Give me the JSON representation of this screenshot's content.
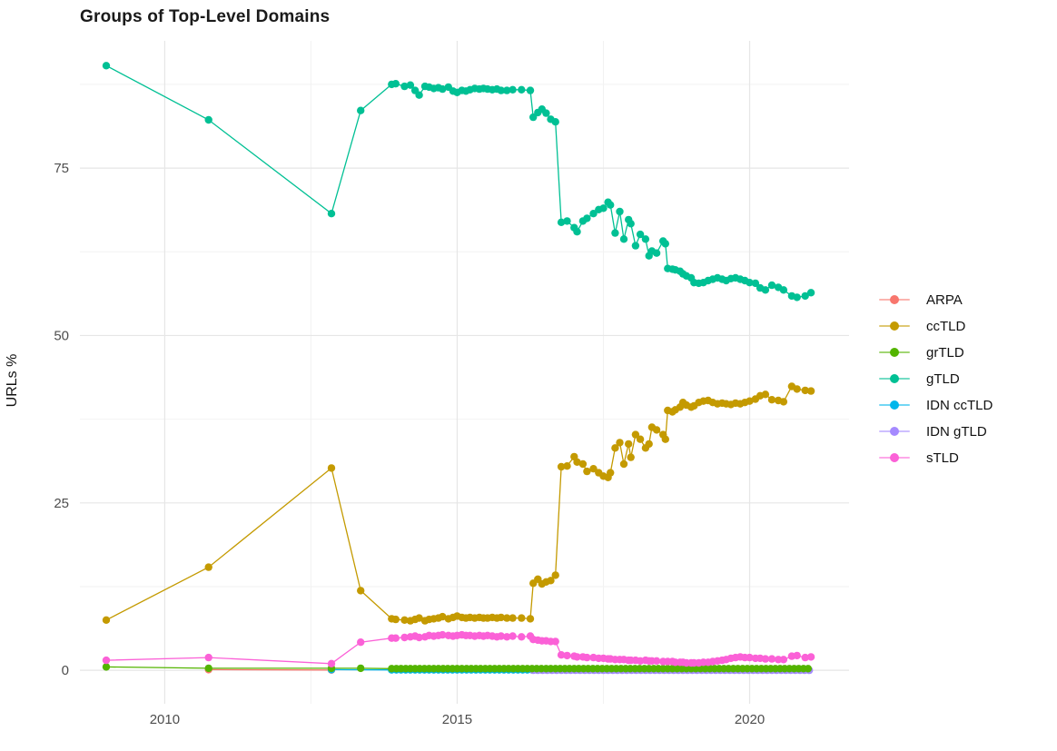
{
  "chart_data": {
    "type": "line",
    "title": "Groups of Top-Level Domains",
    "xlabel": "",
    "ylabel": "URLs %",
    "xlim": [
      2008.55,
      2021.7
    ],
    "ylim": [
      -5,
      94
    ],
    "x_ticks": [
      2010,
      2015,
      2020
    ],
    "x_tick_labels": [
      "2010",
      "2015",
      "2020"
    ],
    "y_ticks": [
      0,
      25,
      50,
      75
    ],
    "y_tick_labels": [
      "0",
      "25",
      "50",
      "75"
    ],
    "x_minor_gridlines": [
      2012.5,
      2017.5
    ],
    "y_minor_gridlines": [
      12.5,
      37.5,
      62.5,
      87.5
    ],
    "grid": true,
    "legend_position": "right",
    "axis_text_color": "#4d4d4d",
    "major_grid_color": "#e6e6e6",
    "minor_grid_color": "#f2f2f2",
    "draw_order": [
      "ARPA",
      "IDN ccTLD",
      "IDN gTLD",
      "ccTLD",
      "gTLD",
      "grTLD",
      "sTLD"
    ],
    "series": [
      {
        "name": "ARPA",
        "color": "#F8766D",
        "points": [
          [
            2010.75,
            0.1
          ],
          [
            2012.85,
            0.05
          ]
        ]
      },
      {
        "name": "ccTLD",
        "color": "#C49A00",
        "points": [
          [
            2009.0,
            7.5
          ],
          [
            2010.75,
            15.4
          ],
          [
            2012.85,
            30.2
          ],
          [
            2013.35,
            11.9
          ],
          [
            2013.88,
            7.7
          ],
          [
            2013.95,
            7.6
          ],
          [
            2014.1,
            7.5
          ],
          [
            2014.2,
            7.4
          ],
          [
            2014.28,
            7.6
          ],
          [
            2014.35,
            7.8
          ],
          [
            2014.45,
            7.4
          ],
          [
            2014.52,
            7.6
          ],
          [
            2014.6,
            7.7
          ],
          [
            2014.68,
            7.8
          ],
          [
            2014.75,
            8.0
          ],
          [
            2014.85,
            7.7
          ],
          [
            2014.93,
            7.9
          ],
          [
            2015.0,
            8.1
          ],
          [
            2015.08,
            7.9
          ],
          [
            2015.15,
            7.8
          ],
          [
            2015.22,
            7.9
          ],
          [
            2015.3,
            7.8
          ],
          [
            2015.38,
            7.9
          ],
          [
            2015.45,
            7.8
          ],
          [
            2015.52,
            7.8
          ],
          [
            2015.6,
            7.9
          ],
          [
            2015.68,
            7.8
          ],
          [
            2015.75,
            7.9
          ],
          [
            2015.85,
            7.8
          ],
          [
            2015.95,
            7.8
          ],
          [
            2016.1,
            7.8
          ],
          [
            2016.25,
            7.7
          ],
          [
            2016.3,
            13.0
          ],
          [
            2016.38,
            13.6
          ],
          [
            2016.45,
            12.9
          ],
          [
            2016.52,
            13.2
          ],
          [
            2016.6,
            13.4
          ],
          [
            2016.68,
            14.2
          ],
          [
            2016.78,
            30.4
          ],
          [
            2016.88,
            30.5
          ],
          [
            2017.0,
            31.9
          ],
          [
            2017.05,
            31.1
          ],
          [
            2017.15,
            30.8
          ],
          [
            2017.22,
            29.7
          ],
          [
            2017.33,
            30.1
          ],
          [
            2017.42,
            29.5
          ],
          [
            2017.5,
            29.0
          ],
          [
            2017.58,
            28.8
          ],
          [
            2017.62,
            29.5
          ],
          [
            2017.7,
            33.2
          ],
          [
            2017.78,
            34.0
          ],
          [
            2017.85,
            30.8
          ],
          [
            2017.93,
            33.8
          ],
          [
            2017.97,
            31.8
          ],
          [
            2018.05,
            35.2
          ],
          [
            2018.13,
            34.5
          ],
          [
            2018.22,
            33.2
          ],
          [
            2018.28,
            33.8
          ],
          [
            2018.33,
            36.3
          ],
          [
            2018.41,
            35.9
          ],
          [
            2018.52,
            35.2
          ],
          [
            2018.56,
            34.5
          ],
          [
            2018.6,
            38.8
          ],
          [
            2018.68,
            38.6
          ],
          [
            2018.73,
            38.9
          ],
          [
            2018.81,
            39.3
          ],
          [
            2018.86,
            40.0
          ],
          [
            2018.92,
            39.6
          ],
          [
            2019.0,
            39.3
          ],
          [
            2019.05,
            39.5
          ],
          [
            2019.13,
            40.0
          ],
          [
            2019.21,
            40.2
          ],
          [
            2019.29,
            40.3
          ],
          [
            2019.37,
            40.0
          ],
          [
            2019.45,
            39.8
          ],
          [
            2019.53,
            39.9
          ],
          [
            2019.6,
            39.8
          ],
          [
            2019.68,
            39.7
          ],
          [
            2019.76,
            39.9
          ],
          [
            2019.84,
            39.8
          ],
          [
            2019.92,
            40.0
          ],
          [
            2020.0,
            40.2
          ],
          [
            2020.1,
            40.5
          ],
          [
            2020.18,
            41.0
          ],
          [
            2020.27,
            41.2
          ],
          [
            2020.38,
            40.4
          ],
          [
            2020.49,
            40.3
          ],
          [
            2020.58,
            40.1
          ],
          [
            2020.72,
            42.4
          ],
          [
            2020.81,
            42.0
          ],
          [
            2020.95,
            41.8
          ],
          [
            2021.05,
            41.7
          ]
        ]
      },
      {
        "name": "grTLD",
        "color": "#53B400",
        "points": [
          [
            2009.0,
            0.5
          ],
          [
            2010.75,
            0.3
          ],
          [
            2012.85,
            0.3
          ],
          [
            2013.35,
            0.3
          ],
          {
            "from": 2013.88,
            "to": 2021.05,
            "step": 0.08,
            "value": 0.25
          }
        ]
      },
      {
        "name": "gTLD",
        "color": "#00C094",
        "points": [
          [
            2009.0,
            90.3
          ],
          [
            2010.75,
            82.2
          ],
          [
            2012.85,
            68.2
          ],
          [
            2013.35,
            83.6
          ],
          [
            2013.88,
            87.5
          ],
          [
            2013.95,
            87.6
          ],
          [
            2014.1,
            87.2
          ],
          [
            2014.2,
            87.4
          ],
          [
            2014.28,
            86.6
          ],
          [
            2014.35,
            85.9
          ],
          [
            2014.45,
            87.2
          ],
          [
            2014.52,
            87.1
          ],
          [
            2014.6,
            86.9
          ],
          [
            2014.68,
            87.0
          ],
          [
            2014.75,
            86.8
          ],
          [
            2014.85,
            87.1
          ],
          [
            2014.93,
            86.5
          ],
          [
            2015.0,
            86.3
          ],
          [
            2015.08,
            86.6
          ],
          [
            2015.15,
            86.5
          ],
          [
            2015.22,
            86.7
          ],
          [
            2015.3,
            86.9
          ],
          [
            2015.38,
            86.8
          ],
          [
            2015.45,
            86.9
          ],
          [
            2015.52,
            86.8
          ],
          [
            2015.6,
            86.7
          ],
          [
            2015.68,
            86.8
          ],
          [
            2015.75,
            86.6
          ],
          [
            2015.85,
            86.6
          ],
          [
            2015.95,
            86.7
          ],
          [
            2016.1,
            86.7
          ],
          [
            2016.25,
            86.6
          ],
          [
            2016.3,
            82.6
          ],
          [
            2016.38,
            83.3
          ],
          [
            2016.45,
            83.8
          ],
          [
            2016.52,
            83.2
          ],
          [
            2016.6,
            82.3
          ],
          [
            2016.68,
            81.9
          ],
          [
            2016.78,
            66.9
          ],
          [
            2016.88,
            67.1
          ],
          [
            2017.0,
            66.1
          ],
          [
            2017.05,
            65.5
          ],
          [
            2017.15,
            67.1
          ],
          [
            2017.22,
            67.5
          ],
          [
            2017.33,
            68.2
          ],
          [
            2017.42,
            68.8
          ],
          [
            2017.5,
            69.0
          ],
          [
            2017.58,
            69.9
          ],
          [
            2017.62,
            69.5
          ],
          [
            2017.7,
            65.3
          ],
          [
            2017.78,
            68.5
          ],
          [
            2017.85,
            64.4
          ],
          [
            2017.93,
            67.3
          ],
          [
            2017.97,
            66.7
          ],
          [
            2018.05,
            63.4
          ],
          [
            2018.13,
            65.1
          ],
          [
            2018.22,
            64.4
          ],
          [
            2018.28,
            61.9
          ],
          [
            2018.33,
            62.6
          ],
          [
            2018.41,
            62.3
          ],
          [
            2018.52,
            64.1
          ],
          [
            2018.56,
            63.7
          ],
          [
            2018.6,
            60.0
          ],
          [
            2018.68,
            59.9
          ],
          [
            2018.73,
            59.8
          ],
          [
            2018.81,
            59.6
          ],
          [
            2018.86,
            59.2
          ],
          [
            2018.92,
            58.9
          ],
          [
            2019.0,
            58.6
          ],
          [
            2019.05,
            57.9
          ],
          [
            2019.13,
            57.8
          ],
          [
            2019.21,
            57.9
          ],
          [
            2019.29,
            58.2
          ],
          [
            2019.37,
            58.4
          ],
          [
            2019.45,
            58.6
          ],
          [
            2019.53,
            58.4
          ],
          [
            2019.6,
            58.2
          ],
          [
            2019.68,
            58.5
          ],
          [
            2019.76,
            58.6
          ],
          [
            2019.84,
            58.4
          ],
          [
            2019.92,
            58.2
          ],
          [
            2020.0,
            57.9
          ],
          [
            2020.1,
            57.8
          ],
          [
            2020.18,
            57.1
          ],
          [
            2020.27,
            56.8
          ],
          [
            2020.38,
            57.5
          ],
          [
            2020.49,
            57.2
          ],
          [
            2020.58,
            56.8
          ],
          [
            2020.72,
            55.9
          ],
          [
            2020.81,
            55.7
          ],
          [
            2020.95,
            55.9
          ],
          [
            2021.05,
            56.4
          ]
        ]
      },
      {
        "name": "IDN ccTLD",
        "color": "#00B6EB",
        "points": [
          [
            2012.85,
            0.1
          ],
          {
            "from": 2013.88,
            "to": 2021.05,
            "step": 0.08,
            "value": 0.06
          }
        ]
      },
      {
        "name": "IDN gTLD",
        "color": "#A58AFF",
        "points": [
          {
            "from": 2016.3,
            "to": 2021.05,
            "step": 0.08,
            "value": 0.0
          }
        ]
      },
      {
        "name": "sTLD",
        "color": "#FB61D7",
        "points": [
          [
            2009.0,
            1.5
          ],
          [
            2010.75,
            1.9
          ],
          [
            2012.85,
            1.0
          ],
          [
            2013.35,
            4.2
          ],
          [
            2013.88,
            4.8
          ],
          [
            2013.95,
            4.8
          ],
          [
            2014.1,
            4.9
          ],
          [
            2014.2,
            5.0
          ],
          [
            2014.28,
            5.1
          ],
          [
            2014.35,
            4.9
          ],
          [
            2014.45,
            5.0
          ],
          [
            2014.52,
            5.2
          ],
          [
            2014.6,
            5.1
          ],
          [
            2014.68,
            5.2
          ],
          [
            2014.75,
            5.3
          ],
          [
            2014.85,
            5.2
          ],
          [
            2014.93,
            5.1
          ],
          [
            2015.0,
            5.2
          ],
          [
            2015.08,
            5.3
          ],
          [
            2015.15,
            5.2
          ],
          [
            2015.22,
            5.2
          ],
          [
            2015.3,
            5.1
          ],
          [
            2015.38,
            5.2
          ],
          [
            2015.45,
            5.1
          ],
          [
            2015.52,
            5.2
          ],
          [
            2015.6,
            5.1
          ],
          [
            2015.68,
            5.0
          ],
          [
            2015.75,
            5.1
          ],
          [
            2015.85,
            5.0
          ],
          [
            2015.95,
            5.1
          ],
          [
            2016.1,
            5.0
          ],
          [
            2016.25,
            5.1
          ],
          [
            2016.3,
            4.6
          ],
          [
            2016.38,
            4.5
          ],
          [
            2016.45,
            4.4
          ],
          [
            2016.52,
            4.4
          ],
          [
            2016.6,
            4.3
          ],
          [
            2016.68,
            4.3
          ],
          [
            2016.78,
            2.3
          ],
          [
            2016.88,
            2.2
          ],
          [
            2017.0,
            2.1
          ],
          [
            2017.05,
            2.0
          ],
          [
            2017.15,
            2.0
          ],
          [
            2017.22,
            1.9
          ],
          [
            2017.33,
            1.9
          ],
          [
            2017.42,
            1.8
          ],
          [
            2017.5,
            1.8
          ],
          [
            2017.58,
            1.7
          ],
          [
            2017.62,
            1.7
          ],
          [
            2017.7,
            1.6
          ],
          [
            2017.78,
            1.6
          ],
          [
            2017.85,
            1.6
          ],
          [
            2017.93,
            1.5
          ],
          [
            2017.97,
            1.5
          ],
          [
            2018.05,
            1.5
          ],
          [
            2018.13,
            1.4
          ],
          [
            2018.22,
            1.5
          ],
          [
            2018.28,
            1.4
          ],
          [
            2018.33,
            1.4
          ],
          [
            2018.41,
            1.4
          ],
          [
            2018.52,
            1.3
          ],
          [
            2018.6,
            1.3
          ],
          [
            2018.68,
            1.3
          ],
          [
            2018.73,
            1.2
          ],
          [
            2018.81,
            1.2
          ],
          [
            2018.86,
            1.2
          ],
          [
            2018.92,
            1.1
          ],
          [
            2019.0,
            1.1
          ],
          [
            2019.05,
            1.1
          ],
          [
            2019.13,
            1.1
          ],
          [
            2019.21,
            1.2
          ],
          [
            2019.29,
            1.2
          ],
          [
            2019.37,
            1.3
          ],
          [
            2019.45,
            1.4
          ],
          [
            2019.53,
            1.5
          ],
          [
            2019.6,
            1.6
          ],
          [
            2019.68,
            1.8
          ],
          [
            2019.76,
            1.9
          ],
          [
            2019.84,
            2.0
          ],
          [
            2019.92,
            1.9
          ],
          [
            2020.0,
            1.9
          ],
          [
            2020.1,
            1.8
          ],
          [
            2020.18,
            1.8
          ],
          [
            2020.27,
            1.7
          ],
          [
            2020.38,
            1.7
          ],
          [
            2020.49,
            1.6
          ],
          [
            2020.58,
            1.6
          ],
          [
            2020.72,
            2.1
          ],
          [
            2020.81,
            2.2
          ],
          [
            2020.95,
            1.9
          ],
          [
            2021.05,
            2.0
          ]
        ]
      }
    ]
  }
}
